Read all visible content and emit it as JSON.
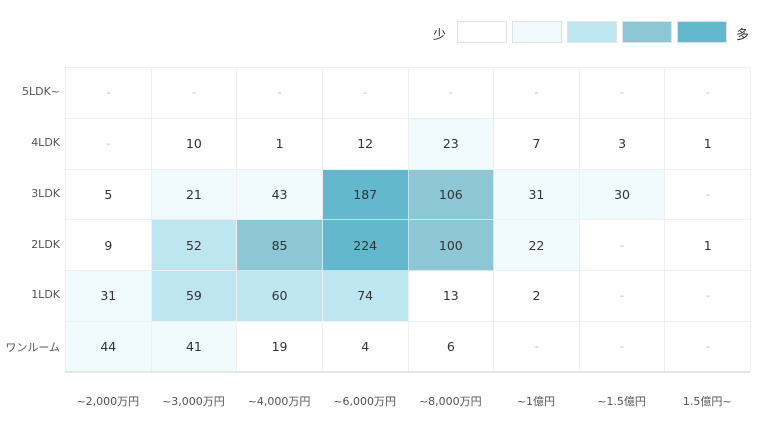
{
  "chart_data": {
    "type": "heatmap",
    "title": "",
    "xlabel": "",
    "ylabel": "",
    "columns": [
      "~2,000万円",
      "~3,000万円",
      "~4,000万円",
      "~6,000万円",
      "~8,000万円",
      "~1億円",
      "~1.5億円",
      "1.5億円~"
    ],
    "rows": [
      "5LDK~",
      "4LDK",
      "3LDK",
      "2LDK",
      "1LDK",
      "ワンルーム"
    ],
    "values": [
      [
        "-",
        "-",
        "-",
        "-",
        "-",
        "-",
        "-",
        "-"
      ],
      [
        "-",
        "10",
        "1",
        "12",
        "23",
        "7",
        "3",
        "1"
      ],
      [
        "5",
        "21",
        "43",
        "187",
        "106",
        "31",
        "30",
        "-"
      ],
      [
        "9",
        "52",
        "85",
        "224",
        "100",
        "22",
        "-",
        "1"
      ],
      [
        "31",
        "59",
        "60",
        "74",
        "13",
        "2",
        "-",
        "-"
      ],
      [
        "44",
        "41",
        "19",
        "4",
        "6",
        "-",
        "-",
        "-"
      ]
    ],
    "legend": {
      "low_label": "少",
      "high_label": "多",
      "scale_colors": [
        "#ffffff",
        "#f1fbfe",
        "#bde6f0",
        "#8dc6d4",
        "#63b8cd"
      ]
    },
    "cell_colors": {
      "level0": "#ffffff",
      "level1": "#f1fbfe",
      "level2": "#bde6f0",
      "level3": "#8dc6d4",
      "level4": "#63b8cd"
    }
  }
}
